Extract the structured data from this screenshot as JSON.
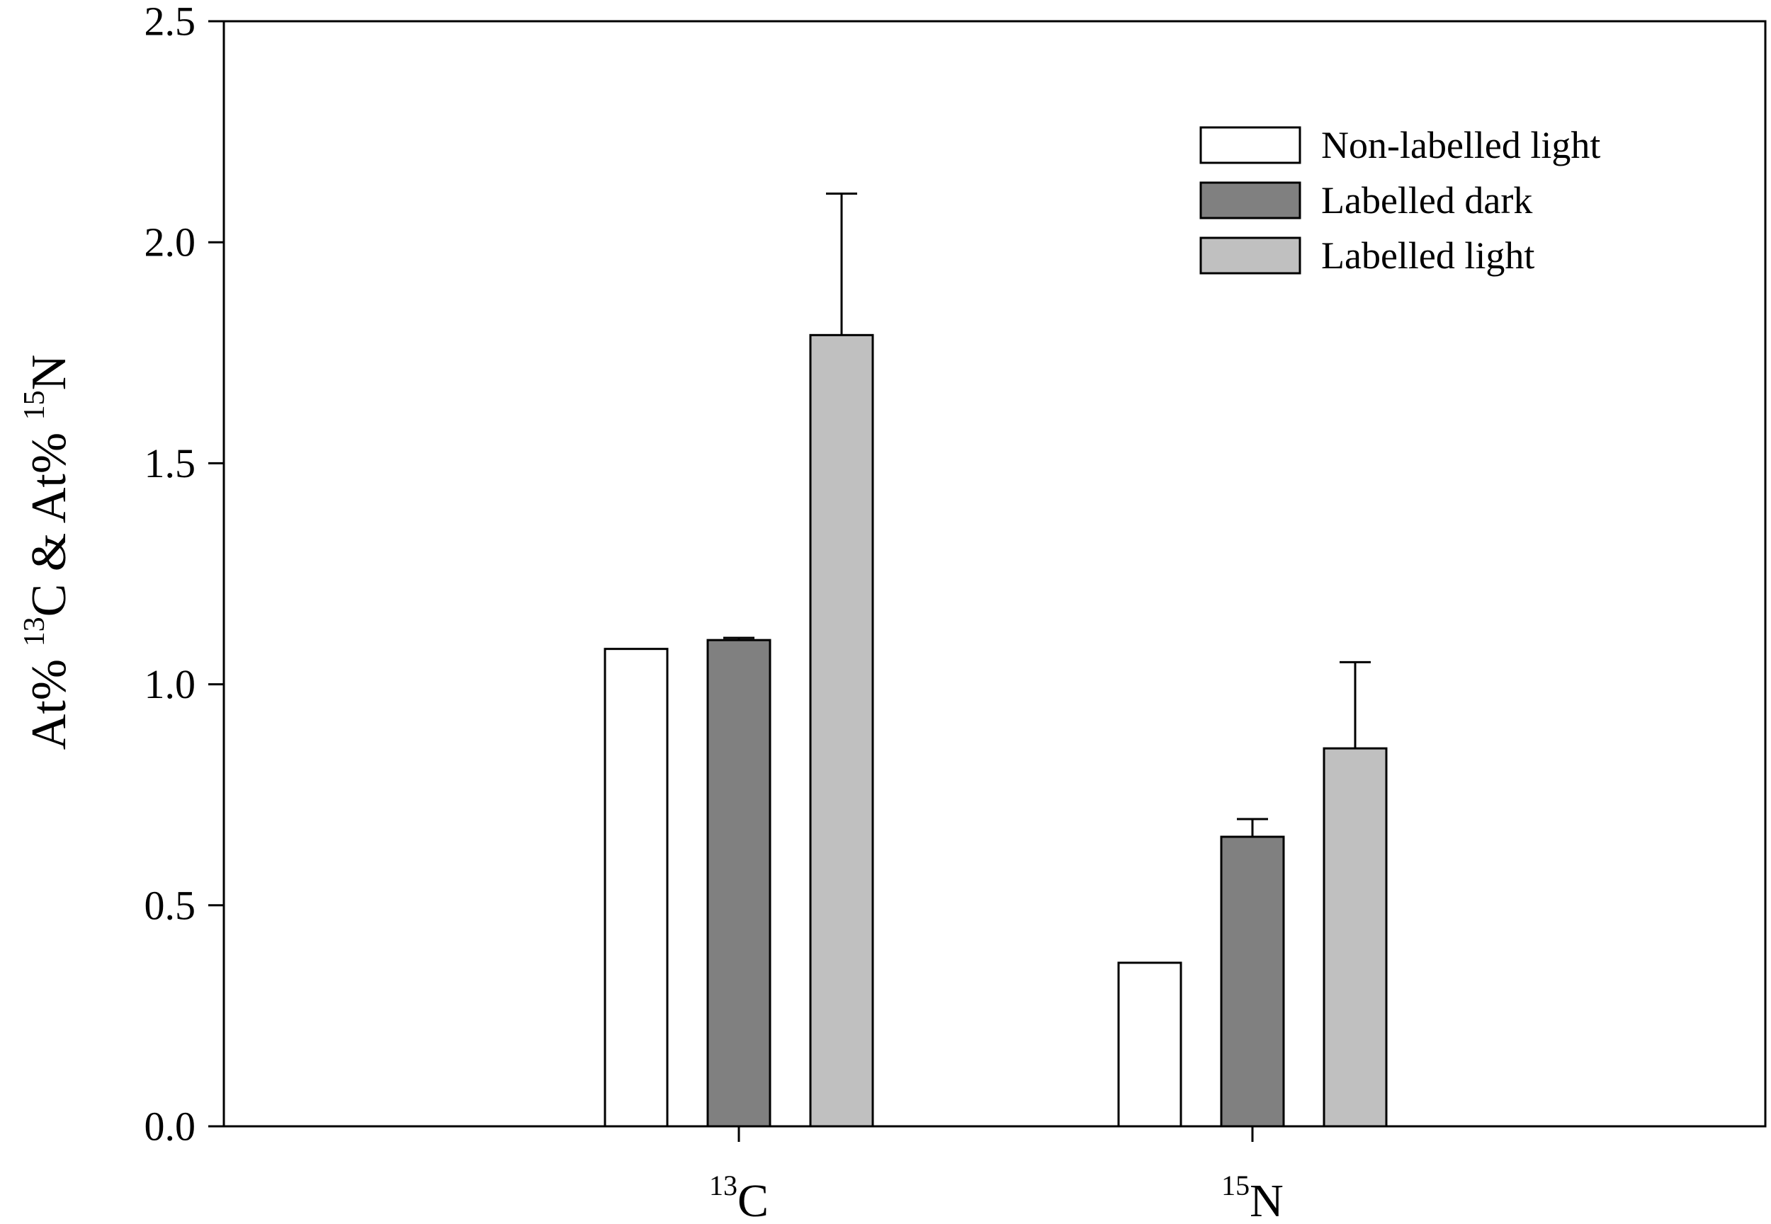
{
  "chart_data": {
    "type": "bar",
    "title": "",
    "ylabel": {
      "parts": [
        {
          "text": "At% ",
          "sup": false
        },
        {
          "text": "13",
          "sup": true
        },
        {
          "text": "C & At% ",
          "sup": false
        },
        {
          "text": "15",
          "sup": true
        },
        {
          "text": "N",
          "sup": false
        }
      ]
    },
    "xlabel": "",
    "ylim": [
      0,
      2.5
    ],
    "yticks": [
      {
        "value": 0.0,
        "label": "0.0"
      },
      {
        "value": 0.5,
        "label": "0.5"
      },
      {
        "value": 1.0,
        "label": "1.0"
      },
      {
        "value": 1.5,
        "label": "1.5"
      },
      {
        "value": 2.0,
        "label": "2.0"
      },
      {
        "value": 2.5,
        "label": "2.5"
      }
    ],
    "categories": [
      {
        "sup": "13",
        "base": "C"
      },
      {
        "sup": "15",
        "base": "N"
      }
    ],
    "legend_position": "top-right",
    "grid": false,
    "series": [
      {
        "name": "Non-labelled light",
        "color": "#ffffff",
        "values": [
          1.08,
          0.37
        ],
        "errors": [
          0.0,
          0.0
        ]
      },
      {
        "name": "Labelled dark",
        "color": "#808080",
        "values": [
          1.1,
          0.655
        ],
        "errors": [
          0.005,
          0.04
        ]
      },
      {
        "name": "Labelled light",
        "color": "#c0c0c0",
        "values": [
          1.79,
          0.855
        ],
        "errors": [
          0.32,
          0.195
        ]
      }
    ]
  }
}
